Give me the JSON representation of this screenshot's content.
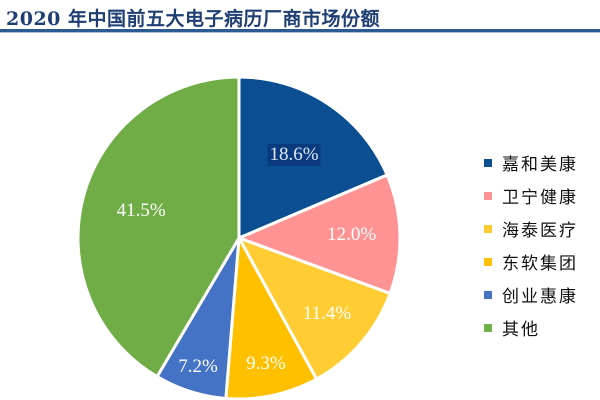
{
  "title": "2020 年中国前五大电子病历厂商市场份额",
  "colors": {
    "title": "#1f3f73",
    "rule": "#2c5a92"
  },
  "chart_data": {
    "type": "pie",
    "title": "2020 年中国前五大电子病历厂商市场份额",
    "categories": [
      "嘉和美康",
      "卫宁健康",
      "海泰医疗",
      "东软集团",
      "创业惠康",
      "其他"
    ],
    "values": [
      18.6,
      12.0,
      11.4,
      9.3,
      7.2,
      41.5
    ],
    "labels": [
      "18.6%",
      "12.0%",
      "11.4%",
      "9.3%",
      "7.2%",
      "41.5%"
    ],
    "colors": [
      "#0b4e92",
      "#ff9393",
      "#ffcd33",
      "#ffc000",
      "#4472c4",
      "#70ad47"
    ],
    "start_angle_deg": 90,
    "direction": "clockwise",
    "legend_position": "right"
  },
  "legend": {
    "items": [
      {
        "label": "嘉和美康",
        "color": "#0b4e92"
      },
      {
        "label": "卫宁健康",
        "color": "#ff9393"
      },
      {
        "label": "海泰医疗",
        "color": "#ffcd33"
      },
      {
        "label": "东软集团",
        "color": "#ffc000"
      },
      {
        "label": "创业惠康",
        "color": "#4472c4"
      },
      {
        "label": "其他",
        "color": "#70ad47"
      }
    ]
  }
}
